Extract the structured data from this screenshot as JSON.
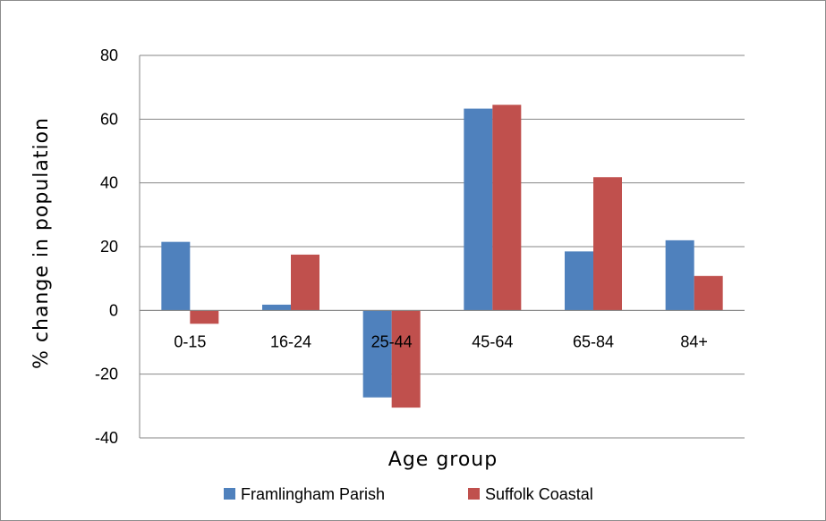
{
  "chart_data": {
    "type": "bar",
    "categories": [
      "0-15",
      "16-24",
      "25-44",
      "45-64",
      "65-84",
      "84+"
    ],
    "series": [
      {
        "name": "Framlingham Parish",
        "color": "#4f81bd",
        "values": [
          21.5,
          1.8,
          -27.3,
          63.3,
          18.5,
          22.0
        ]
      },
      {
        "name": "Suffolk Coastal",
        "color": "#c0504d",
        "values": [
          -4.2,
          17.5,
          -30.5,
          64.5,
          41.8,
          10.8
        ]
      }
    ],
    "title": "",
    "xlabel": "Age group",
    "ylabel": "% change in population",
    "ylim": [
      -40,
      80
    ],
    "yticks": [
      80,
      60,
      40,
      20,
      0,
      -20,
      -40
    ],
    "grid": true,
    "legend_position": "bottom"
  }
}
